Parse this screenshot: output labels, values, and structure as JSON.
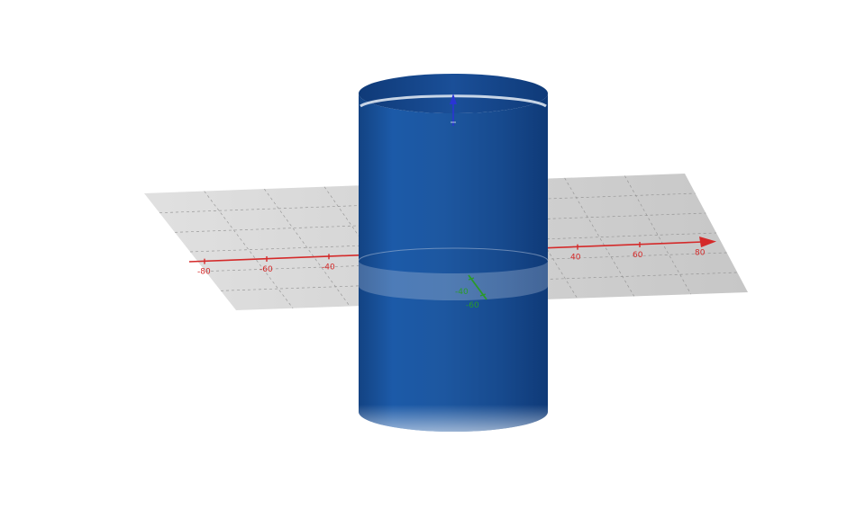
{
  "scene": {
    "type": "3d-graph",
    "shape": "cylinder",
    "colors": {
      "background": "#ffffff",
      "plane": "#cfcfcf",
      "grid": "#8a8a8a",
      "cylinder": "#1c4f96",
      "cylinder_dark": "#0f3a78",
      "x_axis": "#d42a2a",
      "y_axis": "#2a9a2a",
      "z_axis": "#2a35d4"
    },
    "icons": [
      "cylinder-surface",
      "xy-plane",
      "x-axis-arrow",
      "z-axis-arrow"
    ]
  },
  "axes": {
    "x": {
      "ticks": [
        -80,
        -60,
        -40,
        40,
        60,
        80
      ],
      "tick_labels": [
        "-80",
        "-60",
        "-40",
        "40",
        "60",
        "80"
      ]
    },
    "y": {
      "ticks": [
        -40,
        -60
      ],
      "tick_labels": [
        "-40",
        "-60"
      ]
    },
    "z": {
      "ticks": [],
      "tick_labels": []
    }
  }
}
